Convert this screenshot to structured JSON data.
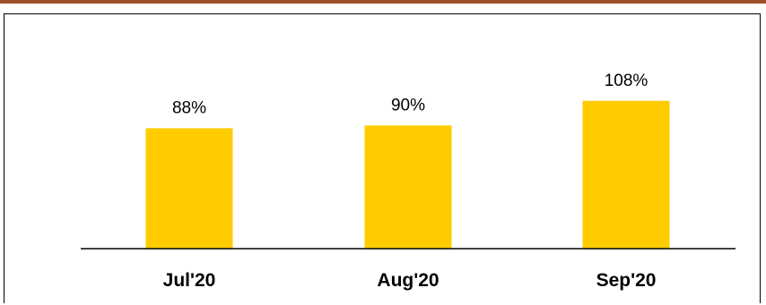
{
  "colors": {
    "top_bar": "#a0522d",
    "bar": "#ffcc00",
    "axis": "#000000"
  },
  "chart_data": {
    "type": "bar",
    "categories": [
      "Jul'20",
      "Aug'20",
      "Sep'20"
    ],
    "values": [
      88,
      90,
      108
    ],
    "data_labels": [
      "88%",
      "90%",
      "108%"
    ],
    "ylim": [
      0,
      120
    ],
    "grid": false,
    "legend": "none"
  }
}
